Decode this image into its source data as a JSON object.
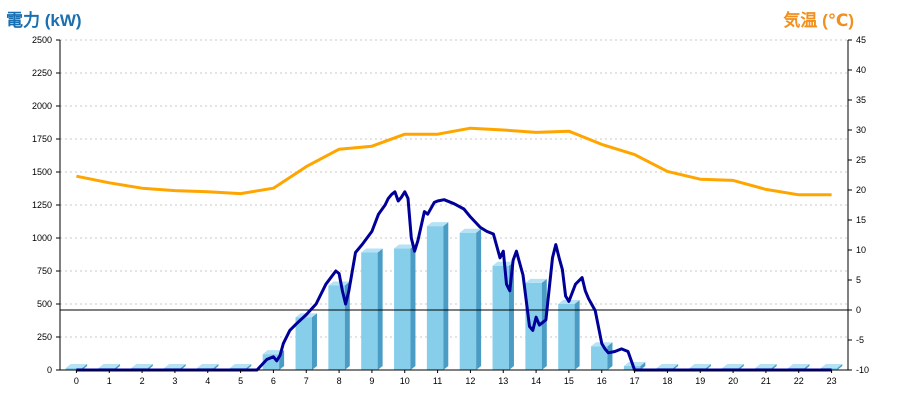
{
  "header": {
    "left_title": "電力 (kW)",
    "right_title": "気温 (℃)"
  },
  "chart_data": {
    "type": "bar",
    "categories": [
      "0",
      "1",
      "2",
      "3",
      "4",
      "5",
      "6",
      "7",
      "8",
      "9",
      "10",
      "11",
      "12",
      "13",
      "14",
      "15",
      "16",
      "17",
      "18",
      "19",
      "20",
      "21",
      "22",
      "23"
    ],
    "y_left": {
      "label": "電力 (kW)",
      "range": [
        0,
        2500
      ],
      "ticks": [
        0,
        250,
        500,
        750,
        1000,
        1250,
        1500,
        1750,
        2000,
        2250,
        2500
      ]
    },
    "y_right": {
      "label": "気温 (℃)",
      "range": [
        -10,
        45
      ],
      "ticks": [
        -10,
        -5,
        0,
        5,
        10,
        15,
        20,
        25,
        30,
        35,
        40,
        45
      ]
    },
    "grid": true,
    "colors": {
      "bars": "#87ceeb",
      "bar_side": "#4a9cc4",
      "power_line": "#000099",
      "temp_line": "#ffa500"
    },
    "bars": {
      "axis": "left",
      "values": [
        15,
        15,
        15,
        15,
        15,
        15,
        120,
        400,
        640,
        890,
        920,
        1090,
        1040,
        790,
        660,
        500,
        180,
        30,
        15,
        15,
        15,
        15,
        15,
        15
      ]
    },
    "power_line": {
      "axis": "left",
      "x": [
        0,
        1,
        2,
        3,
        4,
        5,
        5.5,
        5.8,
        6,
        6.1,
        6.2,
        6.3,
        6.5,
        6.7,
        7,
        7.3,
        7.6,
        7.9,
        8,
        8.1,
        8.2,
        8.3,
        8.5,
        8.7,
        9,
        9.2,
        9.4,
        9.5,
        9.6,
        9.7,
        9.8,
        9.9,
        10,
        10.1,
        10.2,
        10.3,
        10.4,
        10.6,
        10.7,
        10.9,
        11,
        11.2,
        11.5,
        11.8,
        12,
        12.3,
        12.5,
        12.7,
        12.9,
        13,
        13.1,
        13.2,
        13.3,
        13.4,
        13.6,
        13.8,
        13.9,
        14,
        14.1,
        14.3,
        14.5,
        14.6,
        14.7,
        14.8,
        14.9,
        15,
        15.2,
        15.4,
        15.5,
        15.6,
        15.8,
        16,
        16.1,
        16.2,
        16.4,
        16.6,
        16.8,
        17,
        18,
        19,
        20,
        21,
        22,
        23
      ],
      "y": [
        0,
        0,
        0,
        0,
        0,
        0,
        0,
        80,
        100,
        70,
        110,
        200,
        300,
        350,
        420,
        500,
        650,
        750,
        730,
        600,
        500,
        600,
        890,
        950,
        1050,
        1180,
        1250,
        1300,
        1330,
        1350,
        1280,
        1310,
        1350,
        1300,
        1000,
        900,
        980,
        1200,
        1180,
        1270,
        1280,
        1290,
        1260,
        1220,
        1160,
        1080,
        1050,
        1030,
        850,
        900,
        650,
        600,
        830,
        900,
        720,
        330,
        300,
        400,
        340,
        380,
        850,
        950,
        850,
        760,
        560,
        520,
        650,
        700,
        600,
        540,
        450,
        200,
        160,
        130,
        140,
        160,
        140,
        0,
        0,
        0,
        0,
        0,
        0,
        0
      ]
    },
    "temp_line": {
      "axis": "right",
      "x": [
        0,
        1,
        2,
        3,
        4,
        5,
        6,
        7,
        8,
        9,
        10,
        11,
        12,
        13,
        14,
        15,
        16,
        17,
        18,
        19,
        20,
        21,
        22,
        23
      ],
      "y": [
        22.3,
        21.2,
        20.3,
        19.9,
        19.7,
        19.4,
        20.3,
        23.9,
        26.8,
        27.3,
        29.3,
        29.3,
        30.3,
        30.0,
        29.6,
        29.8,
        27.6,
        25.9,
        23.1,
        21.8,
        21.6,
        20.1,
        19.2,
        19.2
      ]
    }
  }
}
